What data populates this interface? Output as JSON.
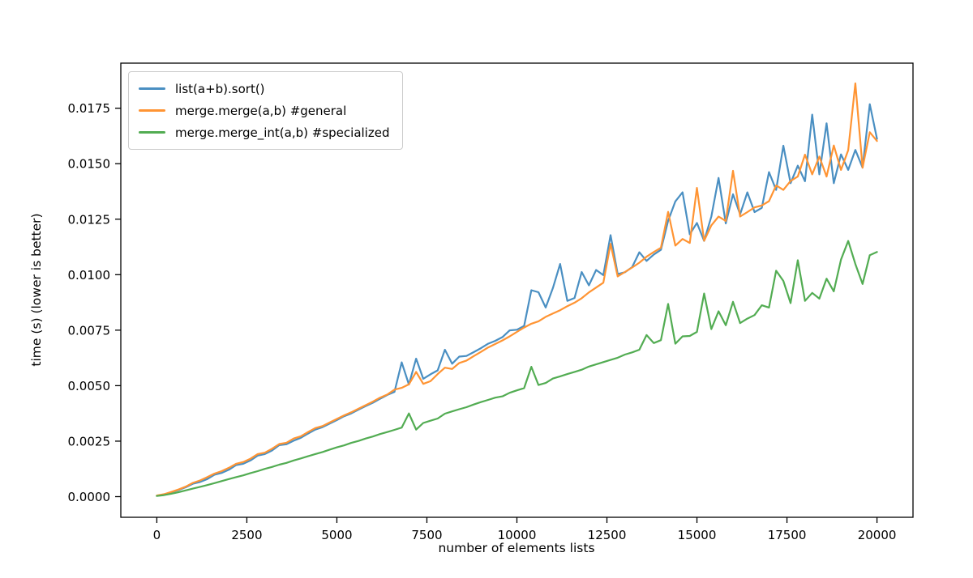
{
  "figure": {
    "background": "#ffffff"
  },
  "chart_data": {
    "type": "line",
    "title": "",
    "xlabel": "number of elements lists",
    "ylabel": "time (s) (lower is better)",
    "grid": false,
    "legend_position": "upper left",
    "xlim": [
      -1000,
      21000
    ],
    "ylim": [
      -0.00093,
      0.01953
    ],
    "x_ticks": [
      0,
      2500,
      5000,
      7500,
      10000,
      12500,
      15000,
      17500,
      20000
    ],
    "x_tick_labels": [
      "0",
      "2500",
      "5000",
      "7500",
      "10000",
      "12500",
      "15000",
      "17500",
      "20000"
    ],
    "y_ticks": [
      0.0,
      0.0025,
      0.005,
      0.0075,
      0.01,
      0.0125,
      0.015,
      0.0175
    ],
    "y_tick_labels": [
      "0.0000",
      "0.0025",
      "0.0050",
      "0.0075",
      "0.0100",
      "0.0125",
      "0.0150",
      "0.0175"
    ],
    "x": [
      0,
      200,
      400,
      600,
      800,
      1000,
      1200,
      1400,
      1600,
      1800,
      2000,
      2200,
      2400,
      2600,
      2800,
      3000,
      3200,
      3400,
      3600,
      3800,
      4000,
      4200,
      4400,
      4600,
      4800,
      5000,
      5200,
      5400,
      5600,
      5800,
      6000,
      6200,
      6400,
      6600,
      6800,
      7000,
      7200,
      7400,
      7600,
      7800,
      8000,
      8200,
      8400,
      8600,
      8800,
      9000,
      9200,
      9400,
      9600,
      9800,
      10000,
      10200,
      10400,
      10600,
      10800,
      11000,
      11200,
      11400,
      11600,
      11800,
      12000,
      12200,
      12400,
      12600,
      12800,
      13000,
      13200,
      13400,
      13600,
      13800,
      14000,
      14200,
      14400,
      14600,
      14800,
      15000,
      15200,
      15400,
      15600,
      15800,
      16000,
      16200,
      16400,
      16600,
      16800,
      17000,
      17200,
      17400,
      17600,
      17800,
      18000,
      18200,
      18400,
      18600,
      18800,
      19000,
      19200,
      19400,
      19600,
      19800,
      20000
    ],
    "series": [
      {
        "name": "list(a+b).sort()",
        "color": "#4a8fc2",
        "values": [
          4e-05,
          0.0001,
          0.0002,
          0.0003,
          0.00042,
          0.00058,
          0.00066,
          0.00079,
          0.00099,
          0.00107,
          0.00121,
          0.00142,
          0.00148,
          0.00163,
          0.00185,
          0.00192,
          0.00208,
          0.00232,
          0.00236,
          0.00252,
          0.00265,
          0.00284,
          0.00302,
          0.00313,
          0.00329,
          0.00345,
          0.00362,
          0.00375,
          0.00392,
          0.00408,
          0.00423,
          0.00441,
          0.00458,
          0.00472,
          0.00605,
          0.00505,
          0.00622,
          0.00531,
          0.00551,
          0.00569,
          0.00662,
          0.00599,
          0.00631,
          0.00634,
          0.00651,
          0.00669,
          0.00689,
          0.00702,
          0.00719,
          0.00749,
          0.00752,
          0.00769,
          0.0093,
          0.00921,
          0.00852,
          0.0094,
          0.01048,
          0.00882,
          0.00895,
          0.01012,
          0.00952,
          0.01021,
          0.00998,
          0.01178,
          0.01003,
          0.01011,
          0.01034,
          0.01101,
          0.01062,
          0.01091,
          0.01112,
          0.01243,
          0.0133,
          0.01371,
          0.01182,
          0.01233,
          0.01152,
          0.01262,
          0.01436,
          0.01231,
          0.01362,
          0.01272,
          0.01371,
          0.01282,
          0.01301,
          0.01462,
          0.01382,
          0.01581,
          0.01412,
          0.01491,
          0.01421,
          0.01721,
          0.01452,
          0.01682,
          0.01412,
          0.01542,
          0.01472,
          0.01562,
          0.01482,
          0.01768,
          0.01612
        ]
      },
      {
        "name": "merge.merge(a,b) #general",
        "color": "#ff9433",
        "values": [
          5e-05,
          0.00011,
          0.00021,
          0.00032,
          0.00045,
          0.00062,
          0.00073,
          0.00088,
          0.00104,
          0.00115,
          0.0013,
          0.00148,
          0.00156,
          0.00171,
          0.00192,
          0.00198,
          0.00216,
          0.00237,
          0.00243,
          0.00262,
          0.00272,
          0.00291,
          0.00309,
          0.00318,
          0.00334,
          0.0035,
          0.00366,
          0.0038,
          0.00396,
          0.00412,
          0.00428,
          0.00446,
          0.0046,
          0.00482,
          0.0049,
          0.00506,
          0.00562,
          0.00508,
          0.0052,
          0.00552,
          0.00581,
          0.00575,
          0.00602,
          0.00613,
          0.00633,
          0.00652,
          0.00672,
          0.00688,
          0.00704,
          0.00722,
          0.00742,
          0.00762,
          0.00779,
          0.0079,
          0.0081,
          0.00825,
          0.0084,
          0.00858,
          0.00874,
          0.00894,
          0.0092,
          0.00942,
          0.00964,
          0.01139,
          0.00992,
          0.01012,
          0.01032,
          0.01054,
          0.01081,
          0.01102,
          0.01121,
          0.01283,
          0.01131,
          0.01161,
          0.01143,
          0.01391,
          0.01153,
          0.01222,
          0.01262,
          0.01242,
          0.01468,
          0.01262,
          0.01282,
          0.01303,
          0.01312,
          0.01331,
          0.01402,
          0.01382,
          0.01422,
          0.01442,
          0.01541,
          0.01452,
          0.01532,
          0.01442,
          0.01582,
          0.01472,
          0.01561,
          0.01862,
          0.01482,
          0.01642,
          0.01602
        ]
      },
      {
        "name": "merge.merge_int(a,b) #specialized",
        "color": "#52ac52",
        "values": [
          3e-05,
          7e-05,
          0.00013,
          0.0002,
          0.00028,
          0.00036,
          0.00044,
          0.00052,
          0.00061,
          0.0007,
          0.00079,
          0.00088,
          0.00096,
          0.00106,
          0.00115,
          0.00125,
          0.00134,
          0.00144,
          0.00152,
          0.00163,
          0.00172,
          0.00182,
          0.00192,
          0.00201,
          0.00212,
          0.00222,
          0.00231,
          0.00242,
          0.00251,
          0.00262,
          0.00271,
          0.00282,
          0.00291,
          0.00301,
          0.00311,
          0.00375,
          0.00302,
          0.00332,
          0.00342,
          0.00352,
          0.00374,
          0.00384,
          0.00394,
          0.00403,
          0.00415,
          0.00426,
          0.00436,
          0.00446,
          0.00452,
          0.00468,
          0.00479,
          0.00489,
          0.00585,
          0.00503,
          0.00512,
          0.00532,
          0.00542,
          0.00552,
          0.00562,
          0.00572,
          0.00586,
          0.00596,
          0.00606,
          0.00616,
          0.00626,
          0.0064,
          0.0065,
          0.00662,
          0.00728,
          0.00692,
          0.00705,
          0.00868,
          0.00689,
          0.00722,
          0.00724,
          0.00742,
          0.00915,
          0.00755,
          0.00835,
          0.00772,
          0.00878,
          0.00782,
          0.00802,
          0.00818,
          0.00862,
          0.00852,
          0.01018,
          0.00972,
          0.00872,
          0.01065,
          0.00882,
          0.00918,
          0.00892,
          0.00982,
          0.00925,
          0.01068,
          0.01152,
          0.01048,
          0.00958,
          0.01088,
          0.01102
        ]
      }
    ]
  }
}
